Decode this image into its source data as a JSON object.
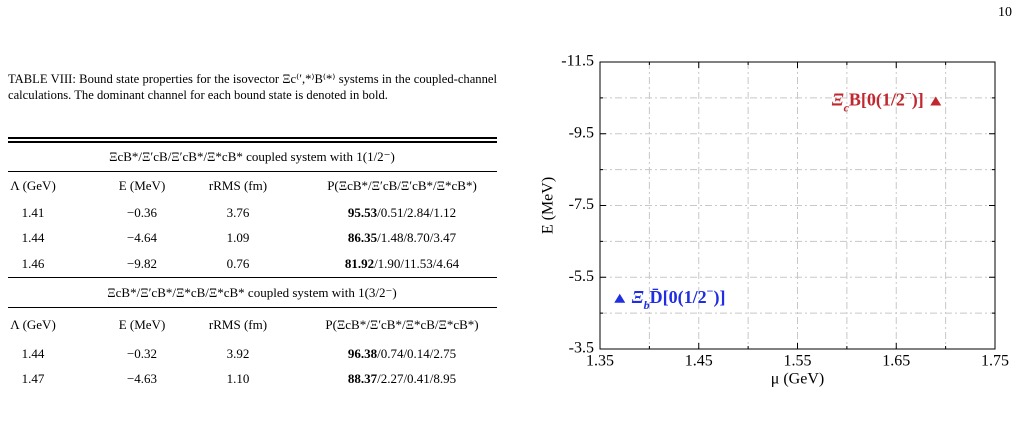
{
  "page_number": "10",
  "table": {
    "caption": "TABLE VIII: Bound state properties for the isovector Ξc⁽′,*⁾B⁽*⁾ systems in the coupled-channel calculations. The dominant channel for each bound state is denoted in bold.",
    "sections": [
      {
        "title": "ΞcB*/Ξ′cB/Ξ′cB*/Ξ*cB* coupled system with 1(1/2⁻)",
        "headers": [
          "Λ (GeV)",
          "E (MeV)",
          "rRMS (fm)",
          "P(ΞcB*/Ξ′cB/Ξ′cB*/Ξ*cB*)"
        ],
        "rows": [
          [
            "1.41",
            "−0.36",
            "3.76",
            "95.53",
            "/0.51/2.84/1.12"
          ],
          [
            "1.44",
            "−4.64",
            "1.09",
            "86.35",
            "/1.48/8.70/3.47"
          ],
          [
            "1.46",
            "−9.82",
            "0.76",
            "81.92",
            "/1.90/11.53/4.64"
          ]
        ]
      },
      {
        "title": "ΞcB*/Ξ′cB*/Ξ*cB/Ξ*cB* coupled system with 1(3/2⁻)",
        "headers": [
          "Λ (GeV)",
          "E (MeV)",
          "rRMS (fm)",
          "P(ΞcB*/Ξ′cB*/Ξ*cB/Ξ*cB*)"
        ],
        "rows": [
          [
            "1.44",
            "−0.32",
            "3.92",
            "96.38",
            "/0.74/0.14/2.75"
          ],
          [
            "1.47",
            "−4.63",
            "1.10",
            "88.37",
            "/2.27/0.41/8.95"
          ]
        ]
      }
    ]
  },
  "chart_data": {
    "type": "scatter",
    "xlabel": "μ (GeV)",
    "ylabel": "E (MeV)",
    "xlim": [
      1.35,
      1.75
    ],
    "xticks": [
      1.35,
      1.45,
      1.55,
      1.65,
      1.75
    ],
    "minor_xticks": [
      1.4,
      1.5,
      1.6,
      1.7
    ],
    "ylim": [
      -3.5,
      -11.5
    ],
    "yticks": [
      -11.5,
      -9.5,
      -7.5,
      -5.5,
      -3.5
    ],
    "minor_yticks": [
      -10.5,
      -8.5,
      -6.5,
      -4.5
    ],
    "grid": true,
    "series": [
      {
        "name": [
          "Ξ",
          "c",
          "B[0(1/2",
          "−",
          ")]"
        ],
        "color": "#c0282d",
        "x": [
          1.69
        ],
        "values": [
          -10.4
        ],
        "label_side": "left"
      },
      {
        "name": [
          "Ξ",
          "b",
          "D̄[0(1/2",
          "−",
          ")]"
        ],
        "color": "#1f2ee0",
        "x": [
          1.37
        ],
        "values": [
          -4.9
        ],
        "label_side": "right"
      }
    ]
  }
}
